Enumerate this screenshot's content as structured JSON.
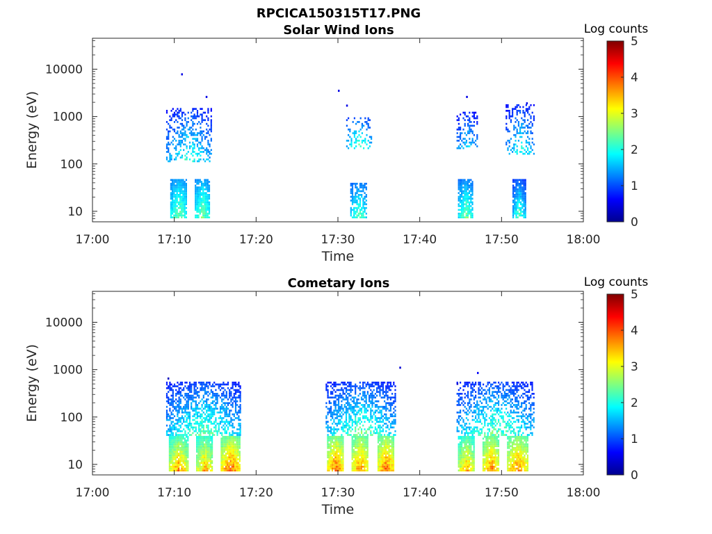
{
  "figure_title": "RPCICA150315T17.PNG",
  "chart_data": [
    {
      "type": "heatmap",
      "title": "Solar Wind Ions",
      "xlabel": "Time",
      "ylabel": "Energy (eV)",
      "x_ticks": [
        "17:00",
        "17:10",
        "17:20",
        "17:30",
        "17:40",
        "17:50",
        "18:00"
      ],
      "xlim": [
        "17:00",
        "18:00"
      ],
      "y_scale": "log",
      "y_ticks": [
        "10",
        "100",
        "1000",
        "10000"
      ],
      "ylim": [
        6,
        45000
      ],
      "colorbar": {
        "title": "Log counts",
        "ticks": [
          "0",
          "1",
          "2",
          "3",
          "4",
          "5"
        ],
        "range": [
          0,
          5
        ],
        "colormap": "jet"
      },
      "clusters": [
        {
          "t_start": "17:09:30",
          "t_end": "17:11:30",
          "e_min": 7,
          "e_max": 45,
          "level_low": 1.0,
          "level_high": 2.6,
          "density": 0.85
        },
        {
          "t_start": "17:12:30",
          "t_end": "17:14:20",
          "e_min": 7,
          "e_max": 45,
          "level_low": 1.0,
          "level_high": 2.6,
          "density": 0.85
        },
        {
          "t_start": "17:09:00",
          "t_end": "17:14:30",
          "e_min": 100,
          "e_max": 1500,
          "level_low": 0.3,
          "level_high": 2.3,
          "density": 0.35
        },
        {
          "t_start": "17:31:30",
          "t_end": "17:33:30",
          "e_min": 7,
          "e_max": 40,
          "level_low": 0.8,
          "level_high": 2.4,
          "density": 0.7
        },
        {
          "t_start": "17:31:00",
          "t_end": "17:34:00",
          "e_min": 200,
          "e_max": 900,
          "level_low": 0.5,
          "level_high": 2.5,
          "density": 0.3
        },
        {
          "t_start": "17:44:40",
          "t_end": "17:46:30",
          "e_min": 7,
          "e_max": 45,
          "level_low": 0.8,
          "level_high": 2.6,
          "density": 0.8
        },
        {
          "t_start": "17:44:30",
          "t_end": "17:47:00",
          "e_min": 200,
          "e_max": 1200,
          "level_low": 0.3,
          "level_high": 2.0,
          "density": 0.35
        },
        {
          "t_start": "17:51:20",
          "t_end": "17:52:50",
          "e_min": 7,
          "e_max": 45,
          "level_low": 0.5,
          "level_high": 2.5,
          "density": 0.85
        },
        {
          "t_start": "17:50:30",
          "t_end": "17:54:00",
          "e_min": 150,
          "e_max": 1800,
          "level_low": 0.3,
          "level_high": 2.2,
          "density": 0.3
        }
      ],
      "isolated_points": [
        {
          "t": "17:10:50",
          "e": 7800,
          "level": 0.5
        },
        {
          "t": "17:13:50",
          "e": 2600,
          "level": 0.5
        },
        {
          "t": "17:30:00",
          "e": 3500,
          "level": 0.5
        },
        {
          "t": "17:31:00",
          "e": 1700,
          "level": 0.5
        },
        {
          "t": "17:45:40",
          "e": 2600,
          "level": 0.5
        },
        {
          "t": "17:53:00",
          "e": 1900,
          "level": 0.5
        }
      ]
    },
    {
      "type": "heatmap",
      "title": "Cometary Ions",
      "xlabel": "Time",
      "ylabel": "Energy (eV)",
      "x_ticks": [
        "17:00",
        "17:10",
        "17:20",
        "17:30",
        "17:40",
        "17:50",
        "18:00"
      ],
      "xlim": [
        "17:00",
        "18:00"
      ],
      "y_scale": "log",
      "y_ticks": [
        "10",
        "100",
        "1000",
        "10000"
      ],
      "ylim": [
        6,
        45000
      ],
      "colorbar": {
        "title": "Log counts",
        "ticks": [
          "0",
          "1",
          "2",
          "3",
          "4",
          "5"
        ],
        "range": [
          0,
          5
        ],
        "colormap": "jet"
      },
      "clusters": [
        {
          "t_start": "17:09:20",
          "t_end": "17:11:40",
          "e_min": 7,
          "e_max": 40,
          "level_low": 1.5,
          "level_high": 4.0,
          "density": 0.95
        },
        {
          "t_start": "17:12:40",
          "t_end": "17:14:40",
          "e_min": 7,
          "e_max": 40,
          "level_low": 1.5,
          "level_high": 3.8,
          "density": 0.95
        },
        {
          "t_start": "17:15:40",
          "t_end": "17:18:00",
          "e_min": 7,
          "e_max": 40,
          "level_low": 1.8,
          "level_high": 4.2,
          "density": 0.95
        },
        {
          "t_start": "17:09:00",
          "t_end": "17:18:00",
          "e_min": 40,
          "e_max": 550,
          "level_low": 0.3,
          "level_high": 2.6,
          "density": 0.55
        },
        {
          "t_start": "17:28:40",
          "t_end": "17:30:40",
          "e_min": 7,
          "e_max": 40,
          "level_low": 1.8,
          "level_high": 4.2,
          "density": 0.95
        },
        {
          "t_start": "17:31:40",
          "t_end": "17:33:40",
          "e_min": 7,
          "e_max": 40,
          "level_low": 1.8,
          "level_high": 4.0,
          "density": 0.95
        },
        {
          "t_start": "17:34:50",
          "t_end": "17:36:50",
          "e_min": 7,
          "e_max": 40,
          "level_low": 1.8,
          "level_high": 4.2,
          "density": 0.95
        },
        {
          "t_start": "17:28:30",
          "t_end": "17:37:00",
          "e_min": 40,
          "e_max": 550,
          "level_low": 0.3,
          "level_high": 2.6,
          "density": 0.5
        },
        {
          "t_start": "17:44:40",
          "t_end": "17:46:40",
          "e_min": 7,
          "e_max": 40,
          "level_low": 1.5,
          "level_high": 3.8,
          "density": 0.9
        },
        {
          "t_start": "17:47:40",
          "t_end": "17:49:40",
          "e_min": 7,
          "e_max": 40,
          "level_low": 1.8,
          "level_high": 4.0,
          "density": 0.9
        },
        {
          "t_start": "17:50:40",
          "t_end": "17:53:10",
          "e_min": 7,
          "e_max": 40,
          "level_low": 1.8,
          "level_high": 4.0,
          "density": 0.9
        },
        {
          "t_start": "17:44:30",
          "t_end": "17:54:00",
          "e_min": 40,
          "e_max": 550,
          "level_low": 0.3,
          "level_high": 2.6,
          "density": 0.45
        }
      ],
      "isolated_points": [
        {
          "t": "17:09:10",
          "e": 650,
          "level": 0.3
        },
        {
          "t": "17:37:30",
          "e": 1100,
          "level": 0.4
        },
        {
          "t": "17:47:00",
          "e": 850,
          "level": 0.6
        },
        {
          "t": "17:44:30",
          "e": 500,
          "level": 0.4
        }
      ]
    }
  ]
}
